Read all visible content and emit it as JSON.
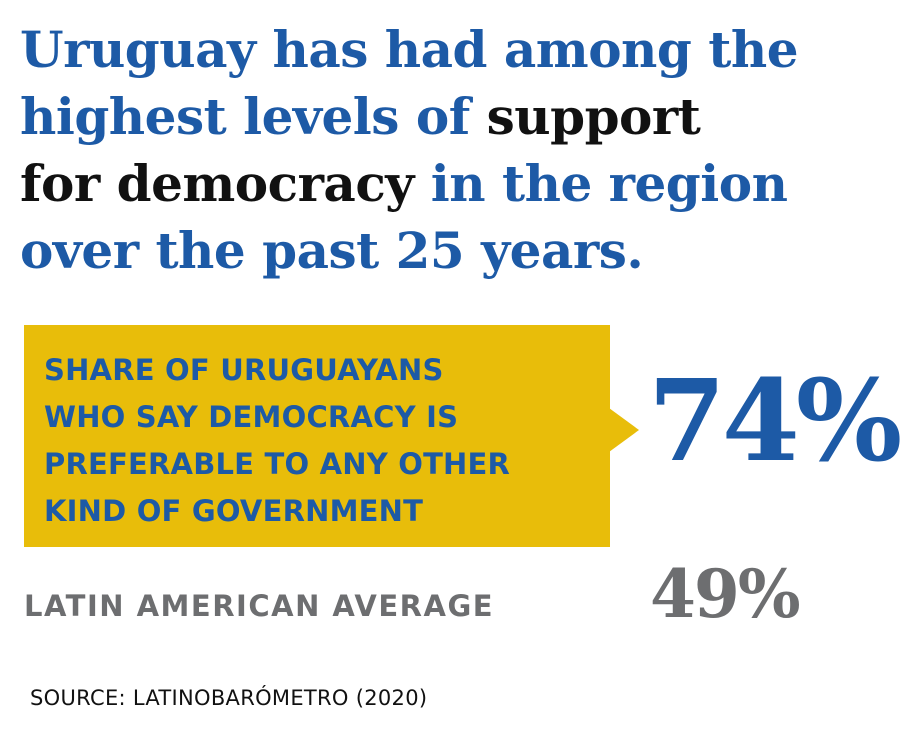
{
  "headline": {
    "line1": "Uruguay has had among the",
    "line2_a": "highest levels of ",
    "line2_b": "support",
    "line3_a": "for democracy",
    "line3_b": " in the region",
    "line4": "over the past 25 years."
  },
  "callout": {
    "lines": [
      "SHARE OF URUGUAYANS",
      "WHO SAY DEMOCRACY IS",
      "PREFERABLE TO ANY OTHER",
      "KIND OF GOVERNMENT"
    ],
    "value": "74%"
  },
  "average": {
    "label": "LATIN AMERICAN AVERAGE",
    "value": "49%"
  },
  "source": "SOURCE: LATINOBARÓMETRO (2020)",
  "colors": {
    "blue": "#1d5aa6",
    "gold": "#e8bd0a",
    "gray": "#6d6e70",
    "black": "#111111"
  }
}
